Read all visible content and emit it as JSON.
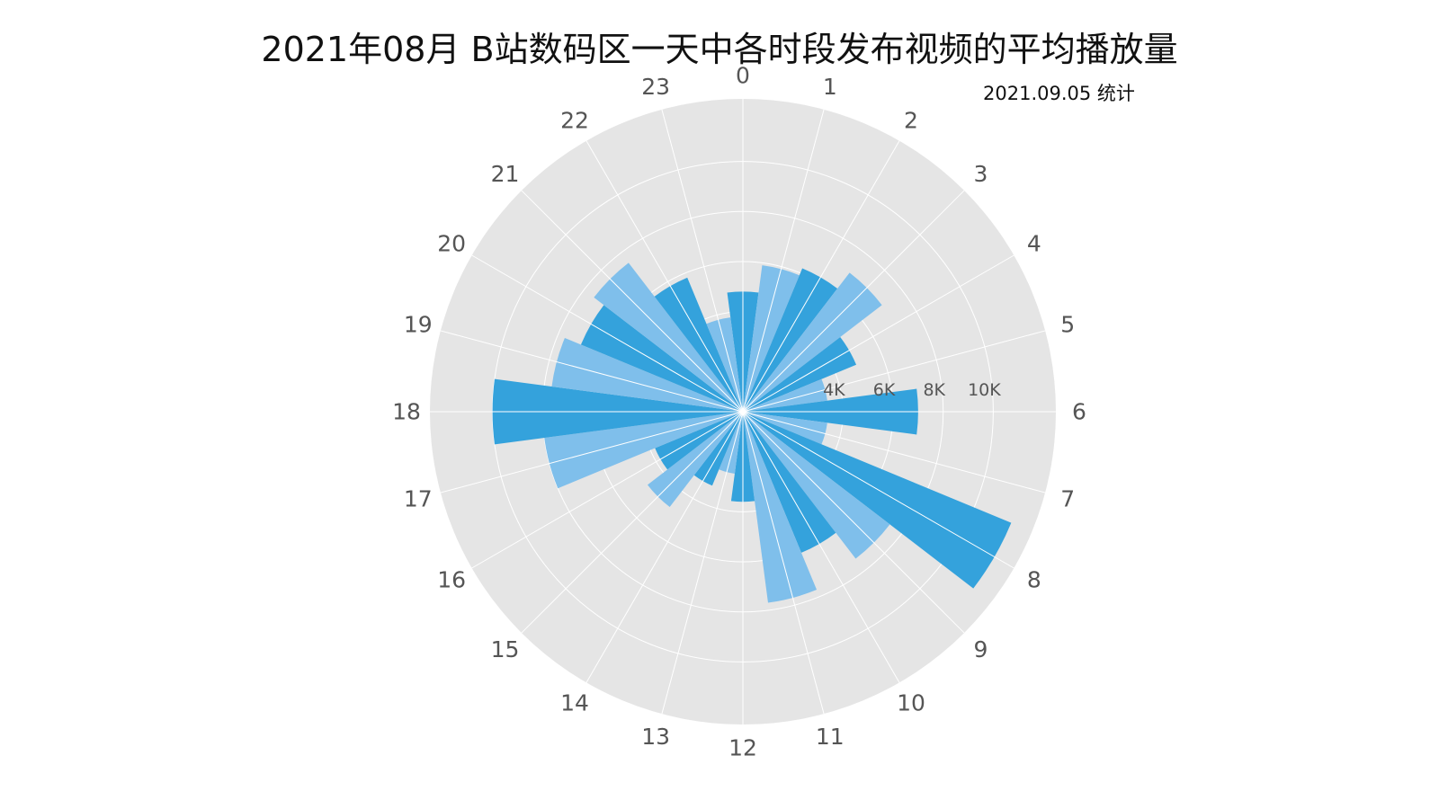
{
  "chart_data": {
    "type": "polar-bar",
    "title": "2021年08月 B站数码区一天中各时段发布视频的平均播放量",
    "subtitle": "2021.09.05 统计",
    "categories": [
      "0",
      "1",
      "2",
      "3",
      "4",
      "5",
      "6",
      "7",
      "8",
      "9",
      "10",
      "11",
      "12",
      "13",
      "14",
      "15",
      "16",
      "17",
      "18",
      "19",
      "20",
      "21",
      "22",
      "23"
    ],
    "values": [
      4800,
      5900,
      6200,
      7000,
      4900,
      3400,
      7000,
      3400,
      11600,
      7400,
      6100,
      7700,
      3600,
      2500,
      3200,
      4800,
      3800,
      8000,
      10000,
      7700,
      7000,
      7500,
      5800,
      3800
    ],
    "bar_colors": [
      "#34a2dc",
      "#7fbfeb"
    ],
    "radial_ticks": [
      4000,
      6000,
      8000,
      10000
    ],
    "radial_tick_labels": [
      "4K",
      "6K",
      "8K",
      "10K"
    ],
    "rmax": 12500,
    "angle_direction": "clockwise",
    "zero_location": "top",
    "grid": true,
    "background": "#e5e5e5",
    "grid_color": "#ffffff",
    "legend": "none"
  }
}
